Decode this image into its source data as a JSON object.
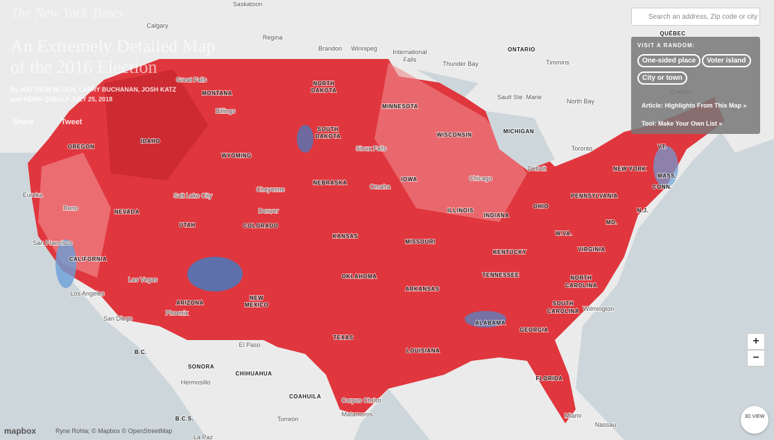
{
  "header": {
    "logo": "The New York Times",
    "title": "An Extremely Detailed Map of the 2016 Election",
    "byline": "By MATTHEW BLOCH, LARRY BUCHANAN, JOSH KATZ and KEVIN QUEALY JULY 25, 2018",
    "share": "Share",
    "tweet": "Tweet"
  },
  "search": {
    "placeholder": "Search an address, Zip code or city"
  },
  "panel": {
    "heading": "VISIT A RANDOM:",
    "buttons": [
      "One-sided place",
      "Voter island",
      "City or town"
    ],
    "links": [
      "Article: Highlights From This Map »",
      "Tool: Make Your Own List »"
    ]
  },
  "map": {
    "regions": [
      "MONTANA",
      "NORTH",
      "DAKOTA",
      "MINNESOTA",
      "OREGON",
      "IDAHO",
      "WYOMING",
      "SOUTH",
      "DAKOTA",
      "WISCONSIN",
      "MICHIGAN",
      "NEBRASKA",
      "IOWA",
      "NEVADA",
      "UTAH",
      "COLORADO",
      "KANSAS",
      "ILLINOIS",
      "INDIANA",
      "OHIO",
      "PENNSYLVANIA",
      "NEW YORK",
      "VT.",
      "MASS.",
      "CONN.",
      "N.J.",
      "MD.",
      "W.VA.",
      "VIRGINIA",
      "MISSOURI",
      "KENTUCKY",
      "CALIFORNIA",
      "OKLAHOMA",
      "ARKANSAS",
      "TENNESSEE",
      "NORTH",
      "CAROLINA",
      "SOUTH",
      "CAROLINA",
      "ARIZONA",
      "NEW",
      "MEXICO",
      "TEXAS",
      "ALABAMA",
      "GEORGIA",
      "LOUISIANA",
      "FLORIDA",
      "QUÉBEC",
      "ONTARIO",
      "B.C.",
      "SONORA",
      "CHIHUAHUA",
      "COAHUILA",
      "B.C.S."
    ],
    "places": [
      "Saskatoon",
      "Calgary",
      "Regina",
      "Brandon",
      "Winnipeg",
      "International",
      "Falls",
      "Thunder Bay",
      "Timmins",
      "Great Falls",
      "Billings",
      "Sault Ste. Marie",
      "North Bay",
      "Québec",
      "Toronto",
      "Sioux Falls",
      "Detroit",
      "Chicago",
      "Cheyenne",
      "Omaha",
      "Salt Lake City",
      "Eureka",
      "Reno",
      "Denver",
      "San Francisco",
      "Las Vegas",
      "Los Angeles",
      "San Diego",
      "Phoenix",
      "El Paso",
      "Hermosillo",
      "Torreón",
      "Corpus Christi",
      "Matamoros",
      "Miami",
      "Nassau",
      "Wilmington",
      "La Paz"
    ]
  },
  "controls": {
    "zoom_in": "+",
    "zoom_out": "−",
    "view_3d": "3D VIEW"
  },
  "attribution": {
    "logo": "mapbox",
    "credit": "Ryne Rohla; © Mapbox © OpenStreetMap"
  }
}
